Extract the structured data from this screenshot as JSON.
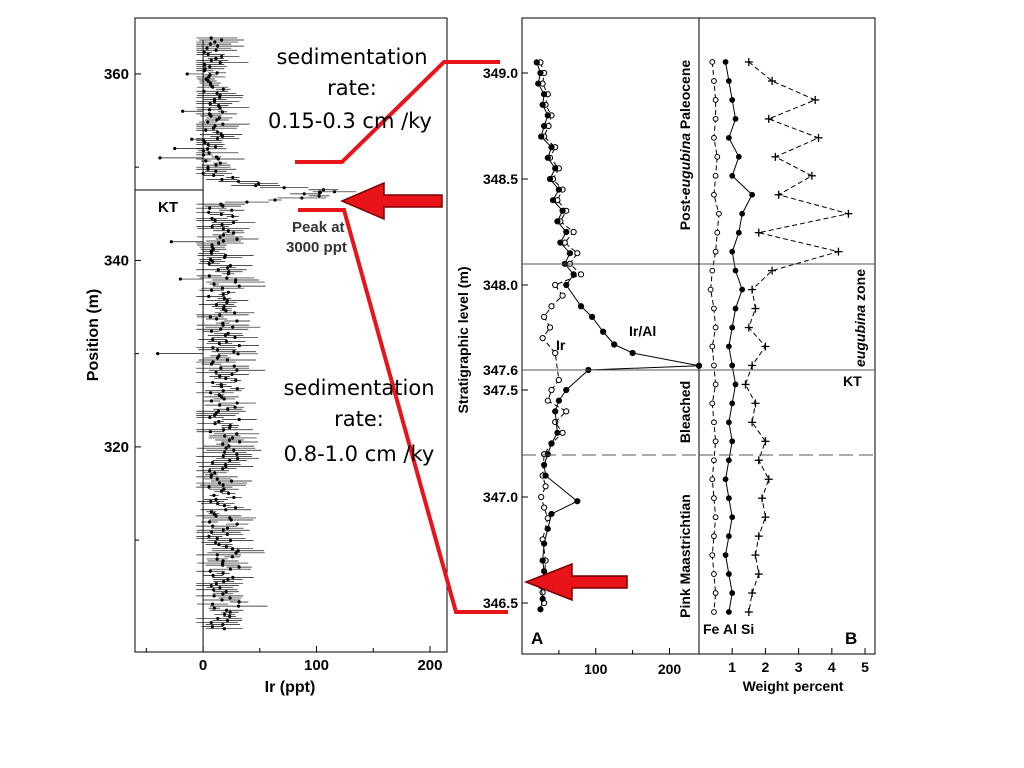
{
  "chart_data": [
    {
      "type": "scatter",
      "xlabel": "Ir (ppt)",
      "ylabel": "Position (m)",
      "xlim": [
        -60,
        215
      ],
      "ylim": [
        298,
        366
      ],
      "xticks": [
        "0",
        "100",
        "200"
      ],
      "yticks": [
        "320",
        "340",
        "360"
      ],
      "annotations": {
        "kt": "KT",
        "peak": "Peak at\n3000 ppt"
      },
      "kt_level": 347.5,
      "peak": {
        "x": 103,
        "y": 347.3
      },
      "series": [
        {
          "name": "Ir (ppt)"
        }
      ]
    },
    {
      "type": "line",
      "panel_label": "A",
      "ylabel": "Stratigraphic level (m)",
      "xlim": [
        0,
        240
      ],
      "ylim": [
        346.33,
        349.2
      ],
      "xticks": [
        "100",
        "200"
      ],
      "yticks": [
        "346.5",
        "347.0",
        "347.5",
        "347.6",
        "348.0",
        "348.5",
        "349.0"
      ],
      "series": [
        {
          "name": "Ir",
          "x": [
            25,
            30,
            28,
            35,
            32,
            40,
            36,
            30,
            45,
            38,
            50,
            42,
            55,
            48,
            60,
            52,
            70,
            58,
            75,
            65,
            80,
            45,
            55,
            40,
            30,
            38,
            28,
            45,
            50,
            40,
            35,
            60,
            45,
            55,
            40,
            30,
            28,
            32,
            26,
            30,
            35,
            28,
            32,
            30,
            28,
            30
          ],
          "y": [
            349.05,
            349.0,
            348.95,
            348.9,
            348.85,
            348.8,
            348.75,
            348.7,
            348.65,
            348.6,
            348.55,
            348.5,
            348.45,
            348.4,
            348.35,
            348.3,
            348.25,
            348.2,
            348.15,
            348.1,
            348.05,
            348.0,
            347.95,
            347.9,
            347.85,
            347.8,
            347.75,
            347.68,
            347.55,
            347.5,
            347.45,
            347.4,
            347.35,
            347.3,
            347.25,
            347.2,
            347.1,
            347.05,
            347.0,
            346.95,
            346.9,
            346.8,
            346.7,
            346.6,
            346.55,
            346.5
          ]
        },
        {
          "name": "Ir/Al",
          "x": [
            20,
            25,
            22,
            30,
            28,
            35,
            30,
            26,
            40,
            35,
            45,
            38,
            50,
            42,
            55,
            48,
            60,
            52,
            65,
            58,
            70,
            60,
            80,
            95,
            110,
            125,
            150,
            240,
            90,
            60,
            50,
            45,
            48,
            40,
            35,
            30,
            32,
            75,
            40,
            35,
            30,
            28,
            30,
            26,
            28,
            25
          ],
          "y": [
            349.05,
            349.0,
            348.95,
            348.9,
            348.85,
            348.8,
            348.75,
            348.7,
            348.65,
            348.6,
            348.55,
            348.5,
            348.45,
            348.4,
            348.35,
            348.3,
            348.25,
            348.2,
            348.15,
            348.1,
            348.05,
            348.0,
            347.9,
            347.85,
            347.78,
            347.72,
            347.68,
            347.62,
            347.6,
            347.5,
            347.45,
            347.4,
            347.3,
            347.25,
            347.2,
            347.15,
            347.1,
            346.98,
            346.92,
            346.85,
            346.78,
            346.7,
            346.65,
            346.58,
            346.52,
            346.47
          ]
        }
      ]
    },
    {
      "type": "line",
      "panel_label": "B",
      "xlabel": "Weight percent",
      "xlim": [
        0,
        5.3
      ],
      "xticks": [
        "1",
        "2",
        "3",
        "4",
        "5"
      ],
      "zones": [
        "Post-eugubina Paleocene",
        "eugubina zone",
        "Bleached",
        "Pink Maastrichtian"
      ],
      "zone_label": "KT",
      "series_labels": [
        "Fe",
        "Al",
        "Si"
      ],
      "series": [
        {
          "name": "Fe",
          "x": [
            0.4,
            0.45,
            0.5,
            0.5,
            0.45,
            0.55,
            0.5,
            0.45,
            0.6,
            0.55,
            0.5,
            0.4,
            0.35,
            0.45,
            0.5,
            0.4,
            0.45,
            0.5,
            0.4,
            0.45,
            0.5,
            0.45,
            0.4,
            0.45,
            0.5,
            0.45,
            0.4,
            0.45,
            0.5,
            0.45
          ]
        },
        {
          "name": "Al",
          "x": [
            0.8,
            0.9,
            1.0,
            1.1,
            0.9,
            1.2,
            1.0,
            1.6,
            1.3,
            1.2,
            1.0,
            1.1,
            1.3,
            1.1,
            1.0,
            0.9,
            1.0,
            1.1,
            1.0,
            0.9,
            1.0,
            0.9,
            0.8,
            0.9,
            1.0,
            0.9,
            0.8,
            0.9,
            1.0,
            0.9
          ]
        },
        {
          "name": "Si",
          "x": [
            1.5,
            2.2,
            3.5,
            2.1,
            3.6,
            2.3,
            3.4,
            2.4,
            4.5,
            1.8,
            4.2,
            2.2,
            1.6,
            1.7,
            1.5,
            2.0,
            1.6,
            1.4,
            1.7,
            1.6,
            2.0,
            1.8,
            2.1,
            1.9,
            2.0,
            1.8,
            1.7,
            1.8,
            1.6,
            1.5
          ]
        }
      ]
    }
  ],
  "annotations": {
    "sed_top_l1": "sedimentation",
    "sed_top_l2": "rate:",
    "sed_top_l3": "0.15-0.3 cm /ky",
    "sed_bot_l1": "sedimentation",
    "sed_bot_l2": "rate:",
    "sed_bot_l3": "0.8-1.0 cm /ky"
  },
  "colors": {
    "highlight": "#e8141a",
    "ink": "#000000",
    "grid": "#555555"
  }
}
